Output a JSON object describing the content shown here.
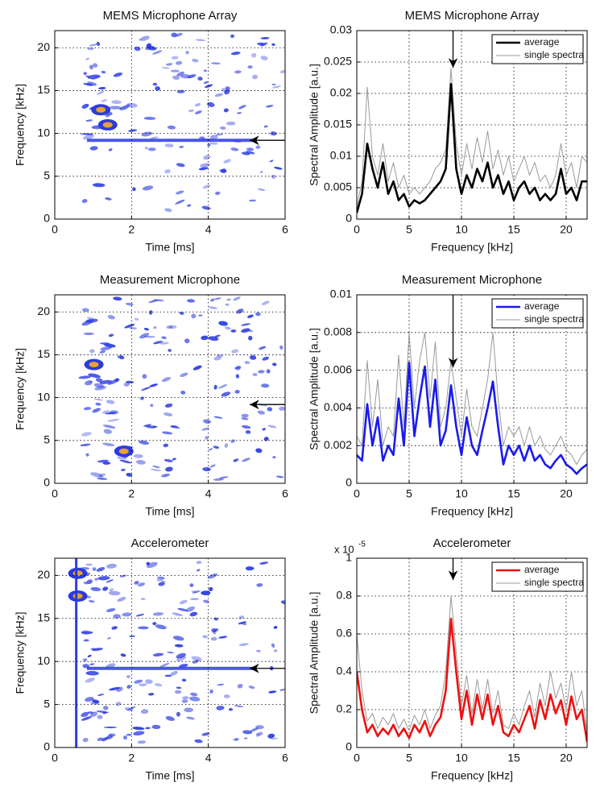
{
  "chart_data": [
    {
      "type": "spectrogram",
      "title": "MEMS Microphone Array",
      "xlabel": "Time [ms]",
      "ylabel": "Frequency [kHz]",
      "xlim": [
        0,
        6
      ],
      "ylim": [
        0,
        22
      ],
      "xticks": [
        0,
        2,
        4,
        6
      ],
      "yticks": [
        0,
        5,
        10,
        15,
        20
      ],
      "grid": true
    },
    {
      "type": "line",
      "title": "MEMS Microphone Array",
      "xlabel": "Frequency [kHz]",
      "ylabel": "Spectral Amplitude [a.u.]",
      "xlim": [
        0,
        22
      ],
      "ylim": [
        0,
        0.03
      ],
      "xticks": [
        0,
        5,
        10,
        15,
        20
      ],
      "yticks": [
        0,
        0.005,
        0.01,
        0.015,
        0.02,
        0.025,
        0.03
      ],
      "grid": true,
      "legend": "upper right",
      "x": [
        0,
        0.5,
        1,
        1.5,
        2,
        2.5,
        3,
        3.5,
        4,
        4.5,
        5,
        5.5,
        6,
        6.5,
        7,
        7.5,
        8,
        8.5,
        9,
        9.5,
        10,
        10.5,
        11,
        11.5,
        12,
        12.5,
        13,
        13.5,
        14,
        14.5,
        15,
        15.5,
        16,
        16.5,
        17,
        17.5,
        18,
        18.5,
        19,
        19.5,
        20,
        20.5,
        21,
        21.5,
        22
      ],
      "series": [
        {
          "name": "single spectra",
          "color": "#999999",
          "values": [
            0.002,
            0.006,
            0.021,
            0.01,
            0.007,
            0.012,
            0.006,
            0.009,
            0.005,
            0.007,
            0.004,
            0.005,
            0.004,
            0.005,
            0.006,
            0.008,
            0.009,
            0.011,
            0.024,
            0.012,
            0.007,
            0.012,
            0.008,
            0.013,
            0.009,
            0.014,
            0.008,
            0.011,
            0.007,
            0.01,
            0.006,
            0.008,
            0.01,
            0.007,
            0.009,
            0.006,
            0.007,
            0.005,
            0.007,
            0.012,
            0.007,
            0.009,
            0.005,
            0.01,
            0.009
          ]
        },
        {
          "name": "average",
          "color": "#000000",
          "values": [
            0.001,
            0.004,
            0.012,
            0.008,
            0.005,
            0.009,
            0.004,
            0.006,
            0.003,
            0.004,
            0.002,
            0.003,
            0.0025,
            0.003,
            0.004,
            0.005,
            0.006,
            0.008,
            0.0215,
            0.008,
            0.004,
            0.007,
            0.005,
            0.008,
            0.006,
            0.009,
            0.005,
            0.007,
            0.004,
            0.006,
            0.003,
            0.005,
            0.006,
            0.004,
            0.005,
            0.003,
            0.004,
            0.003,
            0.004,
            0.008,
            0.004,
            0.005,
            0.003,
            0.006,
            0.006
          ]
        }
      ]
    },
    {
      "type": "spectrogram",
      "title": "Measurement Microphone",
      "xlabel": "Time [ms]",
      "ylabel": "Frequency [kHz]",
      "xlim": [
        0,
        6
      ],
      "ylim": [
        0,
        22
      ],
      "xticks": [
        0,
        2,
        4,
        6
      ],
      "yticks": [
        0,
        5,
        10,
        15,
        20
      ],
      "grid": true
    },
    {
      "type": "line",
      "title": "Measurement Microphone",
      "xlabel": "Frequency [kHz]",
      "ylabel": "Spectral Amplitude [a.u.]",
      "xlim": [
        0,
        22
      ],
      "ylim": [
        0,
        0.01
      ],
      "xticks": [
        0,
        5,
        10,
        15,
        20
      ],
      "yticks": [
        0,
        0.002,
        0.004,
        0.006,
        0.008,
        0.01
      ],
      "grid": true,
      "legend": "upper right",
      "x": [
        0,
        0.5,
        1,
        1.5,
        2,
        2.5,
        3,
        3.5,
        4,
        4.5,
        5,
        5.5,
        6,
        6.5,
        7,
        7.5,
        8,
        8.5,
        9,
        9.5,
        10,
        10.5,
        11,
        11.5,
        12,
        12.5,
        13,
        13.5,
        14,
        14.5,
        15,
        15.5,
        16,
        16.5,
        17,
        17.5,
        18,
        18.5,
        19,
        19.5,
        20,
        20.5,
        21,
        21.5,
        22
      ],
      "series": [
        {
          "name": "single spectra",
          "color": "#999999",
          "values": [
            0.0025,
            0.002,
            0.0065,
            0.003,
            0.0055,
            0.002,
            0.003,
            0.0025,
            0.0068,
            0.003,
            0.008,
            0.004,
            0.0065,
            0.008,
            0.0045,
            0.0075,
            0.003,
            0.004,
            0.0065,
            0.0045,
            0.0025,
            0.005,
            0.003,
            0.0025,
            0.004,
            0.0055,
            0.008,
            0.0045,
            0.002,
            0.003,
            0.0025,
            0.003,
            0.002,
            0.003,
            0.002,
            0.0025,
            0.0018,
            0.0015,
            0.002,
            0.0025,
            0.0018,
            0.0015,
            0.001,
            0.0015,
            0.0018
          ]
        },
        {
          "name": "average",
          "color": "#1a1aee",
          "values": [
            0.0015,
            0.0012,
            0.0042,
            0.002,
            0.0035,
            0.0012,
            0.002,
            0.0015,
            0.0045,
            0.002,
            0.0064,
            0.0025,
            0.0045,
            0.0062,
            0.003,
            0.0055,
            0.002,
            0.0028,
            0.0052,
            0.003,
            0.0015,
            0.0035,
            0.002,
            0.0015,
            0.0028,
            0.004,
            0.0054,
            0.003,
            0.001,
            0.002,
            0.0015,
            0.002,
            0.0012,
            0.002,
            0.0012,
            0.0015,
            0.001,
            0.0008,
            0.0012,
            0.0015,
            0.001,
            0.0008,
            0.0005,
            0.0008,
            0.001
          ]
        }
      ]
    },
    {
      "type": "spectrogram",
      "title": "Accelerometer",
      "xlabel": "Time [ms]",
      "ylabel": "Frequency [kHz]",
      "xlim": [
        0,
        6
      ],
      "ylim": [
        0,
        22
      ],
      "xticks": [
        0,
        2,
        4,
        6
      ],
      "yticks": [
        0,
        5,
        10,
        15,
        20
      ],
      "grid": true
    },
    {
      "type": "line",
      "title": "Accelerometer",
      "xlabel": "Frequency [kHz]",
      "ylabel": "Spectral Amplitude [a.u.]",
      "multiplier_base": "x 10",
      "multiplier_exponent": "-5",
      "xlim": [
        0,
        22
      ],
      "ylim": [
        0,
        1
      ],
      "xticks": [
        0,
        5,
        10,
        15,
        20
      ],
      "yticks": [
        0,
        0.2,
        0.4,
        0.6,
        0.8,
        1
      ],
      "grid": true,
      "legend": "upper right",
      "x": [
        0,
        0.5,
        1,
        1.5,
        2,
        2.5,
        3,
        3.5,
        4,
        4.5,
        5,
        5.5,
        6,
        6.5,
        7,
        7.5,
        8,
        8.5,
        9,
        9.5,
        10,
        10.5,
        11,
        11.5,
        12,
        12.5,
        13,
        13.5,
        14,
        14.5,
        15,
        15.5,
        16,
        16.5,
        17,
        17.5,
        18,
        18.5,
        19,
        19.5,
        20,
        20.5,
        21,
        21.5,
        22
      ],
      "series": [
        {
          "name": "single spectra",
          "color": "#999999",
          "values": [
            0.6,
            0.3,
            0.14,
            0.18,
            0.1,
            0.16,
            0.12,
            0.18,
            0.1,
            0.15,
            0.09,
            0.17,
            0.12,
            0.2,
            0.1,
            0.17,
            0.22,
            0.4,
            0.8,
            0.5,
            0.22,
            0.38,
            0.18,
            0.36,
            0.2,
            0.36,
            0.18,
            0.3,
            0.12,
            0.1,
            0.18,
            0.12,
            0.22,
            0.3,
            0.16,
            0.34,
            0.22,
            0.4,
            0.26,
            0.34,
            0.2,
            0.4,
            0.22,
            0.3,
            0.08
          ]
        },
        {
          "name": "average",
          "color": "#ee1111",
          "values": [
            0.4,
            0.2,
            0.08,
            0.12,
            0.06,
            0.1,
            0.07,
            0.12,
            0.06,
            0.1,
            0.05,
            0.12,
            0.08,
            0.14,
            0.06,
            0.12,
            0.16,
            0.3,
            0.68,
            0.4,
            0.15,
            0.3,
            0.12,
            0.28,
            0.15,
            0.28,
            0.12,
            0.22,
            0.08,
            0.06,
            0.12,
            0.08,
            0.15,
            0.22,
            0.1,
            0.25,
            0.15,
            0.28,
            0.18,
            0.25,
            0.12,
            0.27,
            0.15,
            0.2,
            0.03
          ]
        }
      ]
    }
  ]
}
